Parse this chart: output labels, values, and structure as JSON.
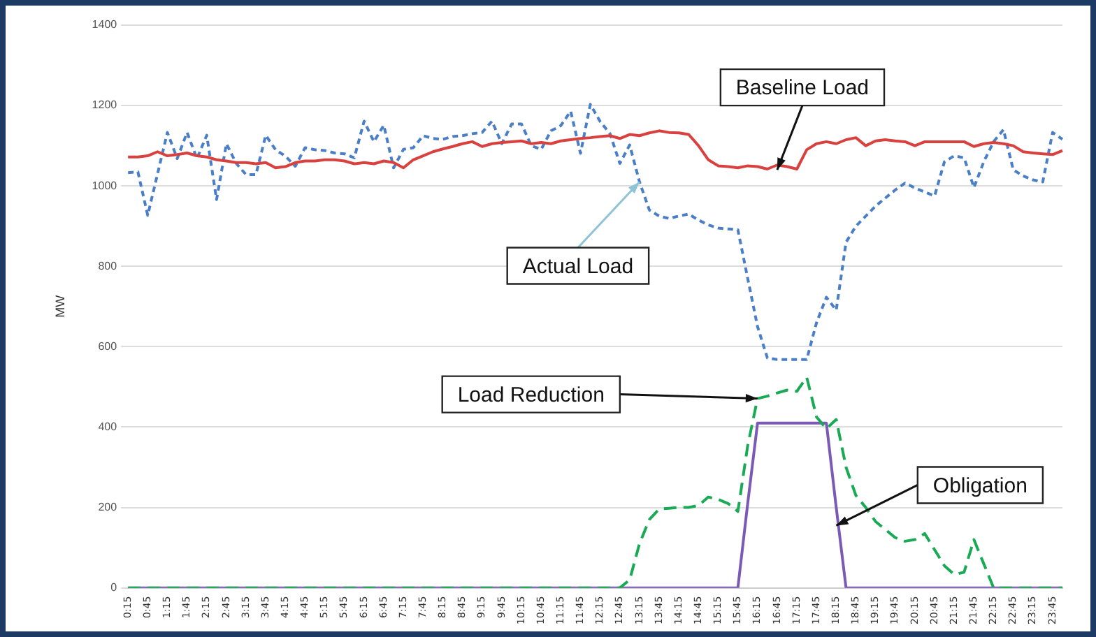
{
  "chart_data": {
    "type": "line",
    "ylabel": "MW",
    "ylim": [
      0,
      1400
    ],
    "yticks": [
      0,
      200,
      400,
      600,
      800,
      1000,
      1200,
      1400
    ],
    "grid": "y",
    "legend": false,
    "marker": "none",
    "categories": [
      "0:15",
      null,
      "0:45",
      null,
      "1:15",
      null,
      "1:45",
      null,
      "2:15",
      null,
      "2:45",
      null,
      "3:15",
      null,
      "3:45",
      null,
      "4:15",
      null,
      "4:45",
      null,
      "5:15",
      null,
      "5:45",
      null,
      "6:15",
      null,
      "6:45",
      null,
      "7:15",
      null,
      "7:45",
      null,
      "8:15",
      null,
      "8:45",
      null,
      "9:15",
      null,
      "9:45",
      null,
      "10:15",
      null,
      "10:45",
      null,
      "11:15",
      null,
      "11:45",
      null,
      "12:15",
      null,
      "12:45",
      null,
      "13:15",
      null,
      "13:45",
      null,
      "14:15",
      null,
      "14:45",
      null,
      "15:15",
      null,
      "15:45",
      null,
      "16:15",
      null,
      "16:45",
      null,
      "17:15",
      null,
      "17:45",
      null,
      "18:15",
      null,
      "18:45",
      null,
      "19:15",
      null,
      "19:45",
      null,
      "20:15",
      null,
      "20:45",
      null,
      "21:15",
      null,
      "21:45",
      null,
      "22:15",
      null,
      "22:45",
      null,
      "23:15",
      null,
      "23:45",
      null
    ],
    "series": [
      {
        "color": "#d9413f",
        "line_style": "solid",
        "values": [
          1072,
          1072,
          1075,
          1085,
          1075,
          1078,
          1082,
          1075,
          1072,
          1065,
          1062,
          1058,
          1058,
          1055,
          1058,
          1045,
          1048,
          1058,
          1062,
          1062,
          1065,
          1065,
          1062,
          1055,
          1058,
          1055,
          1062,
          1058,
          1045,
          1065,
          1075,
          1085,
          1092,
          1098,
          1105,
          1110,
          1098,
          1105,
          1108,
          1110,
          1112,
          1105,
          1108,
          1105,
          1112,
          1115,
          1118,
          1120,
          1123,
          1125,
          1118,
          1128,
          1125,
          1132,
          1137,
          1133,
          1132,
          1128,
          1100,
          1065,
          1050,
          1048,
          1045,
          1050,
          1048,
          1042,
          1052,
          1048,
          1042,
          1090,
          1105,
          1110,
          1105,
          1115,
          1120,
          1100,
          1112,
          1115,
          1112,
          1110,
          1100,
          1110,
          1110,
          1110,
          1110,
          1110,
          1098,
          1105,
          1108,
          1105,
          1100,
          1085,
          1082,
          1080,
          1078,
          1088
        ]
      },
      {
        "color": "#4a7fc8",
        "line_style": "dotted",
        "values": [
          1033,
          1035,
          927,
          1030,
          1133,
          1068,
          1133,
          1068,
          1126,
          966,
          1105,
          1056,
          1028,
          1028,
          1126,
          1090,
          1074,
          1049,
          1095,
          1090,
          1088,
          1082,
          1080,
          1070,
          1161,
          1110,
          1151,
          1045,
          1091,
          1095,
          1125,
          1118,
          1116,
          1123,
          1125,
          1130,
          1133,
          1161,
          1105,
          1154,
          1154,
          1100,
          1091,
          1137,
          1150,
          1186,
          1081,
          1203,
          1160,
          1130,
          1056,
          1102,
          1010,
          940,
          925,
          919,
          925,
          930,
          915,
          903,
          895,
          893,
          891,
          770,
          650,
          572,
          568,
          568,
          568,
          568,
          660,
          723,
          691,
          860,
          900,
          925,
          950,
          970,
          990,
          1007,
          995,
          985,
          975,
          1060,
          1075,
          1070,
          996,
          1060,
          1110,
          1140,
          1040,
          1025,
          1015,
          1010,
          1133,
          1116
        ]
      },
      {
        "color": "#1aaa55",
        "line_style": "dashed",
        "values": [
          0,
          0,
          0,
          0,
          0,
          0,
          0,
          0,
          0,
          0,
          0,
          0,
          0,
          0,
          0,
          0,
          0,
          0,
          0,
          0,
          0,
          0,
          0,
          0,
          0,
          0,
          0,
          0,
          0,
          0,
          0,
          0,
          0,
          0,
          0,
          0,
          0,
          0,
          0,
          0,
          0,
          0,
          0,
          0,
          0,
          0,
          0,
          0,
          0,
          0,
          0,
          20,
          110,
          170,
          196,
          198,
          200,
          200,
          205,
          226,
          220,
          210,
          190,
          354,
          471,
          477,
          485,
          492,
          489,
          524,
          425,
          396,
          419,
          300,
          230,
          200,
          165,
          145,
          125,
          116,
          120,
          135,
          95,
          55,
          33,
          39,
          120,
          60,
          0,
          0,
          0,
          0,
          0,
          0,
          0,
          0
        ]
      },
      {
        "color": "#7b5ab5",
        "line_style": "solid",
        "values": [
          0,
          0,
          0,
          0,
          0,
          0,
          0,
          0,
          0,
          0,
          0,
          0,
          0,
          0,
          0,
          0,
          0,
          0,
          0,
          0,
          0,
          0,
          0,
          0,
          0,
          0,
          0,
          0,
          0,
          0,
          0,
          0,
          0,
          0,
          0,
          0,
          0,
          0,
          0,
          0,
          0,
          0,
          0,
          0,
          0,
          0,
          0,
          0,
          0,
          0,
          0,
          0,
          0,
          0,
          0,
          0,
          0,
          0,
          0,
          0,
          0,
          0,
          0,
          210,
          410,
          410,
          410,
          410,
          410,
          410,
          410,
          410,
          200,
          0,
          0,
          0,
          0,
          0,
          0,
          0,
          0,
          0,
          0,
          0,
          0,
          0,
          0,
          0,
          0,
          0,
          0,
          0,
          0,
          0,
          0,
          0
        ]
      }
    ],
    "annotations": [
      {
        "text": "Baseline Load",
        "x": "16:45",
        "y": 1040
      },
      {
        "text": "Actual Load",
        "x": "13:15",
        "y": 1010
      },
      {
        "text": "Load Reduction",
        "x": "16:15",
        "y": 471
      },
      {
        "text": "Obligation",
        "x": "18:15",
        "y": 155
      }
    ]
  }
}
